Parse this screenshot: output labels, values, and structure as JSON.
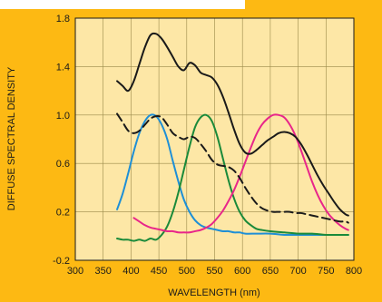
{
  "colors": {
    "frame": "#fdb913",
    "plot_bg": "#fde7a6",
    "grid": "#9a8a4a",
    "ink": "#1a1a1a",
    "blue": "#1e8fd6",
    "green": "#1a8a3a",
    "magenta": "#e8268a"
  },
  "chart_data": {
    "type": "line",
    "xlabel": "WAVELENGTH (nm)",
    "ylabel": "DIFFUSE SPECTRAL DENSITY",
    "xlim": [
      300,
      800
    ],
    "ylim": [
      -0.2,
      1.8
    ],
    "xticks": [
      300,
      350,
      400,
      450,
      500,
      550,
      600,
      650,
      700,
      750,
      800
    ],
    "yticks": [
      -0.2,
      0.2,
      0.6,
      1.0,
      1.4,
      1.8
    ],
    "ytick_labels": [
      "-0.2",
      "0.2",
      "0.6",
      "1.0",
      "1.4",
      "1.8"
    ],
    "grid": true,
    "series": [
      {
        "key": "total",
        "color": "#1a1a1a",
        "dash": false,
        "x": [
          375,
          385,
          395,
          405,
          415,
          425,
          435,
          445,
          455,
          465,
          475,
          485,
          495,
          505,
          515,
          525,
          535,
          545,
          555,
          565,
          575,
          585,
          595,
          605,
          615,
          625,
          635,
          645,
          655,
          665,
          675,
          685,
          695,
          705,
          715,
          725,
          735,
          745,
          755,
          765,
          775,
          785,
          790
        ],
        "y": [
          1.28,
          1.24,
          1.2,
          1.28,
          1.42,
          1.56,
          1.66,
          1.67,
          1.63,
          1.56,
          1.48,
          1.4,
          1.37,
          1.43,
          1.41,
          1.35,
          1.33,
          1.31,
          1.25,
          1.15,
          1.02,
          0.88,
          0.76,
          0.69,
          0.68,
          0.71,
          0.75,
          0.79,
          0.82,
          0.85,
          0.86,
          0.85,
          0.82,
          0.76,
          0.68,
          0.59,
          0.5,
          0.42,
          0.35,
          0.28,
          0.22,
          0.18,
          0.17
        ]
      },
      {
        "key": "dashed",
        "color": "#1a1a1a",
        "dash": true,
        "x": [
          375,
          385,
          395,
          405,
          415,
          425,
          435,
          445,
          455,
          465,
          475,
          485,
          495,
          505,
          515,
          525,
          535,
          545,
          555,
          565,
          575,
          585,
          595,
          605,
          615,
          625,
          635,
          645,
          655,
          665,
          675,
          685,
          695,
          705,
          715,
          725,
          735,
          745,
          755,
          765,
          775,
          785,
          790
        ],
        "y": [
          1.01,
          0.94,
          0.87,
          0.85,
          0.87,
          0.92,
          0.97,
          0.99,
          0.98,
          0.92,
          0.85,
          0.82,
          0.8,
          0.82,
          0.81,
          0.76,
          0.7,
          0.63,
          0.59,
          0.58,
          0.57,
          0.54,
          0.48,
          0.4,
          0.33,
          0.27,
          0.23,
          0.21,
          0.2,
          0.2,
          0.2,
          0.2,
          0.19,
          0.19,
          0.18,
          0.17,
          0.16,
          0.15,
          0.14,
          0.13,
          0.12,
          0.12,
          0.11
        ]
      },
      {
        "key": "blue",
        "color": "#1e8fd6",
        "dash": false,
        "x": [
          375,
          385,
          395,
          405,
          415,
          425,
          435,
          445,
          455,
          465,
          475,
          485,
          495,
          505,
          515,
          525,
          535,
          545,
          555,
          565,
          575,
          585,
          595,
          605,
          625,
          650,
          675,
          700,
          725,
          750,
          775,
          790
        ],
        "y": [
          0.22,
          0.35,
          0.52,
          0.7,
          0.85,
          0.95,
          1.0,
          0.99,
          0.92,
          0.8,
          0.62,
          0.45,
          0.3,
          0.2,
          0.13,
          0.09,
          0.07,
          0.06,
          0.05,
          0.04,
          0.04,
          0.03,
          0.03,
          0.02,
          0.02,
          0.02,
          0.01,
          0.01,
          0.01,
          0.01,
          0.01,
          0.01
        ]
      },
      {
        "key": "green",
        "color": "#1a8a3a",
        "dash": false,
        "x": [
          375,
          385,
          395,
          405,
          415,
          425,
          435,
          445,
          455,
          465,
          475,
          485,
          495,
          505,
          515,
          525,
          535,
          545,
          555,
          565,
          575,
          585,
          595,
          605,
          615,
          625,
          635,
          650,
          675,
          700,
          725,
          750,
          775,
          790
        ],
        "y": [
          -0.02,
          -0.03,
          -0.03,
          -0.04,
          -0.03,
          -0.04,
          -0.02,
          -0.03,
          0.01,
          0.08,
          0.2,
          0.36,
          0.55,
          0.74,
          0.9,
          0.98,
          1.0,
          0.95,
          0.82,
          0.64,
          0.46,
          0.31,
          0.2,
          0.13,
          0.09,
          0.06,
          0.05,
          0.04,
          0.03,
          0.02,
          0.02,
          0.01,
          0.01,
          0.01
        ]
      },
      {
        "key": "magenta",
        "color": "#e8268a",
        "dash": false,
        "x": [
          405,
          415,
          425,
          435,
          445,
          455,
          465,
          475,
          485,
          495,
          505,
          515,
          525,
          535,
          545,
          555,
          565,
          575,
          585,
          595,
          605,
          615,
          625,
          635,
          645,
          655,
          665,
          675,
          685,
          695,
          705,
          715,
          725,
          735,
          745,
          755,
          765,
          775,
          785,
          790
        ],
        "y": [
          0.15,
          0.12,
          0.09,
          0.07,
          0.06,
          0.05,
          0.04,
          0.04,
          0.03,
          0.03,
          0.03,
          0.04,
          0.05,
          0.07,
          0.1,
          0.15,
          0.21,
          0.29,
          0.38,
          0.49,
          0.61,
          0.73,
          0.84,
          0.92,
          0.97,
          1.0,
          1.0,
          0.98,
          0.92,
          0.83,
          0.71,
          0.58,
          0.45,
          0.34,
          0.25,
          0.18,
          0.13,
          0.09,
          0.06,
          0.05
        ]
      }
    ]
  }
}
